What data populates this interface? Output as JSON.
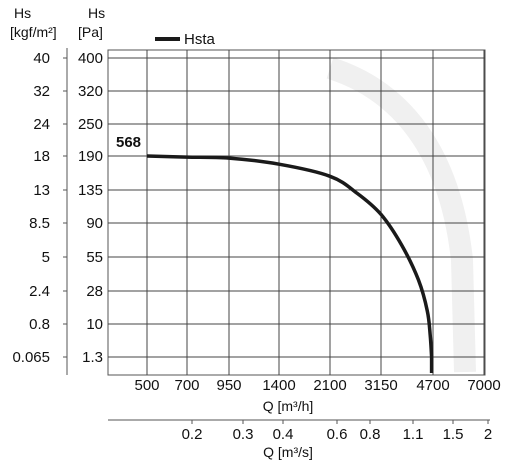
{
  "chart_data": {
    "type": "line",
    "axes": {
      "y_primary": {
        "label_top": "Hs",
        "label_unit": "[Pa]",
        "ticks": [
          "400",
          "320",
          "250",
          "190",
          "135",
          "90",
          "55",
          "28",
          "10",
          "1.3"
        ]
      },
      "y_secondary": {
        "label_top": "Hs",
        "label_unit": "[kgf/m²]",
        "ticks": [
          "40",
          "32",
          "24",
          "18",
          "13",
          "8.5",
          "5",
          "2.4",
          "0.8",
          "0.065"
        ]
      },
      "x_primary": {
        "label": "Q [m³/h]",
        "ticks": [
          "500",
          "700",
          "950",
          "1400",
          "2100",
          "3150",
          "4700",
          "7000"
        ]
      },
      "x_secondary": {
        "label": "Q [m³/s]",
        "ticks": [
          "0.2",
          "0.3",
          "0.4",
          "0.6",
          "0.8",
          "1.1",
          "1.5",
          "2"
        ]
      }
    },
    "series": [
      {
        "name": "Hsta",
        "color": "#1a1a1a",
        "label": "568",
        "points": [
          {
            "q": 500,
            "hs": 190
          },
          {
            "q": 700,
            "hs": 188
          },
          {
            "q": 950,
            "hs": 186
          },
          {
            "q": 1400,
            "hs": 175
          },
          {
            "q": 2100,
            "hs": 155
          },
          {
            "q": 2600,
            "hs": 130
          },
          {
            "q": 3150,
            "hs": 100
          },
          {
            "q": 3700,
            "hs": 65
          },
          {
            "q": 4200,
            "hs": 35
          },
          {
            "q": 4500,
            "hs": 15
          },
          {
            "q": 4600,
            "hs": 5
          },
          {
            "q": 4650,
            "hs": 1.3
          }
        ]
      }
    ],
    "grid": true,
    "legend_position": "top-left"
  }
}
